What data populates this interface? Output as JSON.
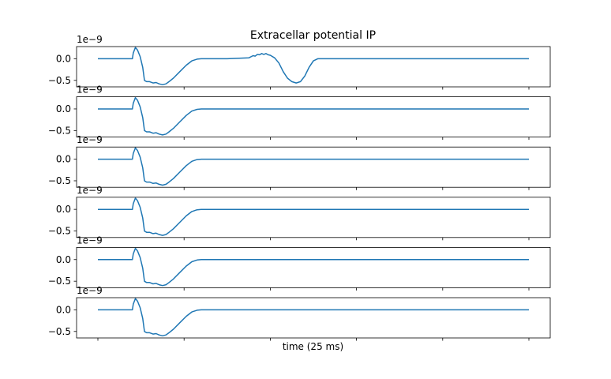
{
  "chart_data": {
    "type": "line",
    "title": "Extracellar potential IP",
    "xlabel": "time (25 ms)",
    "scale_label": "1e−9",
    "line_color": "#1f77b4",
    "xlim": [
      0,
      1
    ],
    "ylim": [
      -0.65,
      0.28
    ],
    "yticks": [
      0.0,
      -0.5
    ],
    "ytick_labels": [
      "0.0",
      "−0.5"
    ],
    "xticks": [
      0.0,
      0.2,
      0.4,
      0.6,
      0.8,
      1.0
    ],
    "grid": false,
    "panels": [
      {
        "name": "",
        "series": {
          "x": [
            0.0,
            0.08,
            0.082,
            0.087,
            0.092,
            0.098,
            0.104,
            0.108,
            0.113,
            0.12,
            0.128,
            0.135,
            0.142,
            0.15,
            0.158,
            0.165,
            0.175,
            0.19,
            0.205,
            0.218,
            0.23,
            0.24,
            0.25,
            0.3,
            0.35,
            0.36,
            0.365,
            0.37,
            0.375,
            0.38,
            0.385,
            0.39,
            0.395,
            0.4,
            0.41,
            0.42,
            0.43,
            0.44,
            0.45,
            0.46,
            0.47,
            0.48,
            0.49,
            0.5,
            0.51,
            0.52,
            1.0
          ],
          "y": [
            0.0,
            0.0,
            0.13,
            0.26,
            0.2,
            0.05,
            -0.2,
            -0.5,
            -0.53,
            -0.53,
            -0.56,
            -0.55,
            -0.58,
            -0.6,
            -0.58,
            -0.53,
            -0.45,
            -0.3,
            -0.15,
            -0.05,
            -0.01,
            0.0,
            0.0,
            0.0,
            0.02,
            0.07,
            0.06,
            0.1,
            0.09,
            0.12,
            0.1,
            0.12,
            0.09,
            0.08,
            0.02,
            -0.1,
            -0.3,
            -0.45,
            -0.53,
            -0.56,
            -0.53,
            -0.4,
            -0.2,
            -0.05,
            0.0,
            0.0,
            0.0
          ]
        }
      },
      {
        "name": "",
        "series": {
          "x": [
            0.0,
            0.08,
            0.082,
            0.087,
            0.092,
            0.098,
            0.104,
            0.108,
            0.113,
            0.12,
            0.128,
            0.135,
            0.142,
            0.15,
            0.158,
            0.165,
            0.175,
            0.19,
            0.205,
            0.218,
            0.23,
            0.24,
            0.25,
            1.0
          ],
          "y": [
            0.0,
            0.0,
            0.13,
            0.26,
            0.2,
            0.05,
            -0.2,
            -0.5,
            -0.53,
            -0.53,
            -0.56,
            -0.55,
            -0.58,
            -0.6,
            -0.58,
            -0.53,
            -0.45,
            -0.3,
            -0.15,
            -0.05,
            -0.01,
            0.0,
            0.0,
            0.0
          ]
        }
      },
      {
        "name": "",
        "series": {
          "x": [
            0.0,
            0.08,
            0.082,
            0.087,
            0.092,
            0.098,
            0.104,
            0.108,
            0.113,
            0.12,
            0.128,
            0.135,
            0.142,
            0.15,
            0.158,
            0.165,
            0.175,
            0.19,
            0.205,
            0.218,
            0.23,
            0.24,
            0.25,
            1.0
          ],
          "y": [
            0.0,
            0.0,
            0.13,
            0.26,
            0.2,
            0.05,
            -0.2,
            -0.5,
            -0.53,
            -0.53,
            -0.56,
            -0.55,
            -0.58,
            -0.6,
            -0.58,
            -0.53,
            -0.45,
            -0.3,
            -0.15,
            -0.05,
            -0.01,
            0.0,
            0.0,
            0.0
          ]
        }
      },
      {
        "name": "",
        "series": {
          "x": [
            0.0,
            0.08,
            0.082,
            0.087,
            0.092,
            0.098,
            0.104,
            0.108,
            0.113,
            0.12,
            0.128,
            0.135,
            0.142,
            0.15,
            0.158,
            0.165,
            0.175,
            0.19,
            0.205,
            0.218,
            0.23,
            0.24,
            0.25,
            1.0
          ],
          "y": [
            0.0,
            0.0,
            0.13,
            0.26,
            0.2,
            0.05,
            -0.2,
            -0.5,
            -0.53,
            -0.53,
            -0.56,
            -0.55,
            -0.58,
            -0.6,
            -0.58,
            -0.53,
            -0.45,
            -0.3,
            -0.15,
            -0.05,
            -0.01,
            0.0,
            0.0,
            0.0
          ]
        }
      },
      {
        "name": "",
        "series": {
          "x": [
            0.0,
            0.08,
            0.082,
            0.087,
            0.092,
            0.098,
            0.104,
            0.108,
            0.113,
            0.12,
            0.128,
            0.135,
            0.142,
            0.15,
            0.158,
            0.165,
            0.175,
            0.19,
            0.205,
            0.218,
            0.23,
            0.24,
            0.25,
            1.0
          ],
          "y": [
            0.0,
            0.0,
            0.13,
            0.26,
            0.2,
            0.05,
            -0.2,
            -0.5,
            -0.53,
            -0.53,
            -0.56,
            -0.55,
            -0.58,
            -0.6,
            -0.58,
            -0.53,
            -0.45,
            -0.3,
            -0.15,
            -0.05,
            -0.01,
            0.0,
            0.0,
            0.0
          ]
        }
      },
      {
        "name": "",
        "series": {
          "x": [
            0.0,
            0.08,
            0.082,
            0.087,
            0.092,
            0.098,
            0.104,
            0.108,
            0.113,
            0.12,
            0.128,
            0.135,
            0.142,
            0.15,
            0.158,
            0.165,
            0.175,
            0.19,
            0.205,
            0.218,
            0.23,
            0.24,
            0.25,
            1.0
          ],
          "y": [
            0.0,
            0.0,
            0.13,
            0.26,
            0.2,
            0.05,
            -0.2,
            -0.5,
            -0.53,
            -0.53,
            -0.56,
            -0.55,
            -0.58,
            -0.6,
            -0.58,
            -0.53,
            -0.45,
            -0.3,
            -0.15,
            -0.05,
            -0.01,
            0.0,
            0.0,
            0.0
          ]
        }
      }
    ]
  }
}
